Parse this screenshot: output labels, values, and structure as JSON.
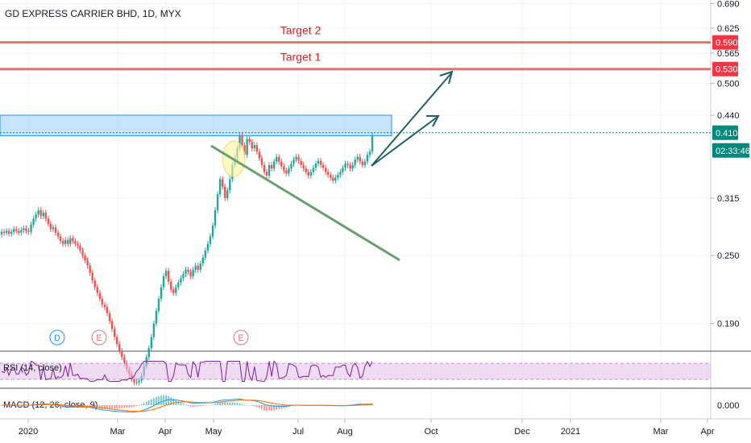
{
  "title": "GD EXPRESS CARRIER BHD, 1D, MYX",
  "chart_data": {
    "type": "candlestick",
    "price_axis": {
      "ticks": [
        "0.690",
        "0.625",
        "0.565",
        "0.500",
        "0.440",
        "0.315",
        "0.250",
        "0.190"
      ],
      "scale": "log"
    },
    "time_axis": {
      "ticks": [
        "2020",
        "Mar",
        "Apr",
        "May",
        "Jul",
        "Aug",
        "Oct",
        "Dec",
        "2021",
        "Mar",
        "Apr"
      ]
    },
    "price_labels": [
      {
        "value": "0.590",
        "color": "#f23645"
      },
      {
        "value": "0.530",
        "color": "#f23645"
      },
      {
        "value": "0.410",
        "color": "#00897b"
      },
      {
        "value": "02:33:46",
        "color": "#00897b"
      }
    ],
    "annotations": {
      "target_2": {
        "label": "Target 2",
        "price": 0.59,
        "color": "#e57373"
      },
      "target_1": {
        "label": "Target 1",
        "price": 0.53,
        "color": "#e57373"
      },
      "resistance_zone": {
        "low": 0.405,
        "high": 0.44,
        "color": "#90caf9"
      },
      "trendline_color": "#6b9e6e",
      "arrow_color": "#1f5f63",
      "highlight_color": "#fff59d"
    },
    "events": [
      {
        "label": "D",
        "color": "#2196f3"
      },
      {
        "label": "E",
        "color": "#e57373"
      },
      {
        "label": "E",
        "color": "#e57373"
      }
    ],
    "closes": [
      0.275,
      0.274,
      0.276,
      0.273,
      0.275,
      0.278,
      0.276,
      0.274,
      0.277,
      0.279,
      0.276,
      0.275,
      0.283,
      0.29,
      0.295,
      0.3,
      0.293,
      0.297,
      0.29,
      0.284,
      0.278,
      0.28,
      0.274,
      0.27,
      0.265,
      0.262,
      0.266,
      0.262,
      0.268,
      0.265,
      0.262,
      0.26,
      0.255,
      0.25,
      0.245,
      0.24,
      0.233,
      0.226,
      0.22,
      0.215,
      0.21,
      0.205,
      0.203,
      0.198,
      0.192,
      0.186,
      0.18,
      0.175,
      0.17,
      0.166,
      0.162,
      0.158,
      0.155,
      0.152,
      0.15,
      0.15,
      0.151,
      0.154,
      0.16,
      0.166,
      0.172,
      0.18,
      0.19,
      0.2,
      0.21,
      0.22,
      0.23,
      0.235,
      0.225,
      0.218,
      0.215,
      0.22,
      0.224,
      0.228,
      0.232,
      0.236,
      0.234,
      0.23,
      0.236,
      0.24,
      0.236,
      0.242,
      0.248,
      0.255,
      0.262,
      0.27,
      0.282,
      0.3,
      0.32,
      0.34,
      0.33,
      0.315,
      0.325,
      0.34,
      0.36,
      0.37,
      0.385,
      0.405,
      0.39,
      0.375,
      0.4,
      0.395,
      0.385,
      0.39,
      0.38,
      0.37,
      0.36,
      0.35,
      0.345,
      0.36,
      0.355,
      0.365,
      0.372,
      0.365,
      0.358,
      0.352,
      0.348,
      0.355,
      0.362,
      0.368,
      0.372,
      0.366,
      0.36,
      0.355,
      0.35,
      0.345,
      0.35,
      0.356,
      0.362,
      0.366,
      0.36,
      0.356,
      0.35,
      0.346,
      0.342,
      0.338,
      0.342,
      0.346,
      0.35,
      0.356,
      0.362,
      0.36,
      0.355,
      0.36,
      0.368,
      0.372,
      0.365,
      0.36,
      0.365,
      0.375,
      0.38,
      0.405
    ],
    "rsi": {
      "label": "RSI (14, close)",
      "upper": 70,
      "lower": 30
    },
    "macd": {
      "label": "MACD (12, 26, close, 9)",
      "tick": "0.000"
    }
  }
}
